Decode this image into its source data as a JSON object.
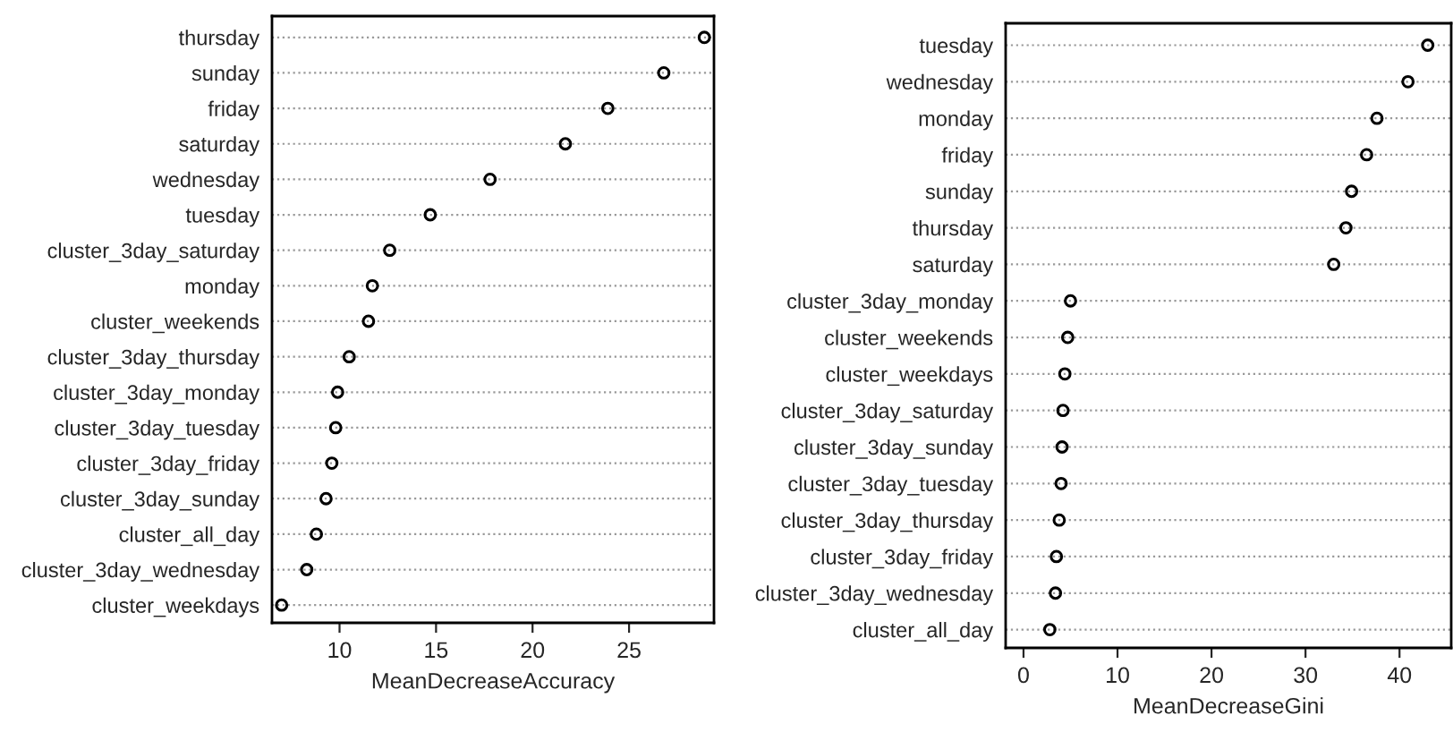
{
  "chart_data": [
    {
      "type": "scatter",
      "orientation": "horizontal",
      "xlabel": "MeanDecreaseAccuracy",
      "categories": [
        "thursday",
        "sunday",
        "friday",
        "saturday",
        "wednesday",
        "tuesday",
        "cluster_3day_saturday",
        "monday",
        "cluster_weekends",
        "cluster_3day_thursday",
        "cluster_3day_monday",
        "cluster_3day_tuesday",
        "cluster_3day_friday",
        "cluster_3day_sunday",
        "cluster_all_day",
        "cluster_3day_wednesday",
        "cluster_weekdays"
      ],
      "series": [
        {
          "color": "#000000",
          "values": [
            28.9,
            26.8,
            23.9,
            21.7,
            17.8,
            14.7,
            12.6,
            11.7,
            11.5,
            10.5,
            9.9,
            9.8,
            9.6,
            9.3,
            8.8,
            8.3,
            7.0
          ]
        }
      ],
      "xlim": [
        6.5,
        29.4
      ],
      "xticks": [
        10,
        15,
        20,
        25
      ],
      "grid": "y",
      "marker": "circle"
    },
    {
      "type": "scatter",
      "orientation": "horizontal",
      "xlabel": "MeanDecreaseGini",
      "categories": [
        "tuesday",
        "wednesday",
        "monday",
        "friday",
        "sunday",
        "thursday",
        "saturday",
        "cluster_3day_monday",
        "cluster_weekends",
        "cluster_weekdays",
        "cluster_3day_saturday",
        "cluster_3day_sunday",
        "cluster_3day_tuesday",
        "cluster_3day_thursday",
        "cluster_3day_friday",
        "cluster_3day_wednesday",
        "cluster_all_day"
      ],
      "series": [
        {
          "color": "#000000",
          "values": [
            43.0,
            40.9,
            37.6,
            36.5,
            34.9,
            34.3,
            33.0,
            5.0,
            4.7,
            4.4,
            4.2,
            4.1,
            4.0,
            3.8,
            3.5,
            3.4,
            2.8
          ]
        }
      ],
      "xlim": [
        -1.9,
        45.5
      ],
      "xticks": [
        0,
        10,
        20,
        30,
        40
      ],
      "grid": "y",
      "marker": "circle"
    }
  ]
}
